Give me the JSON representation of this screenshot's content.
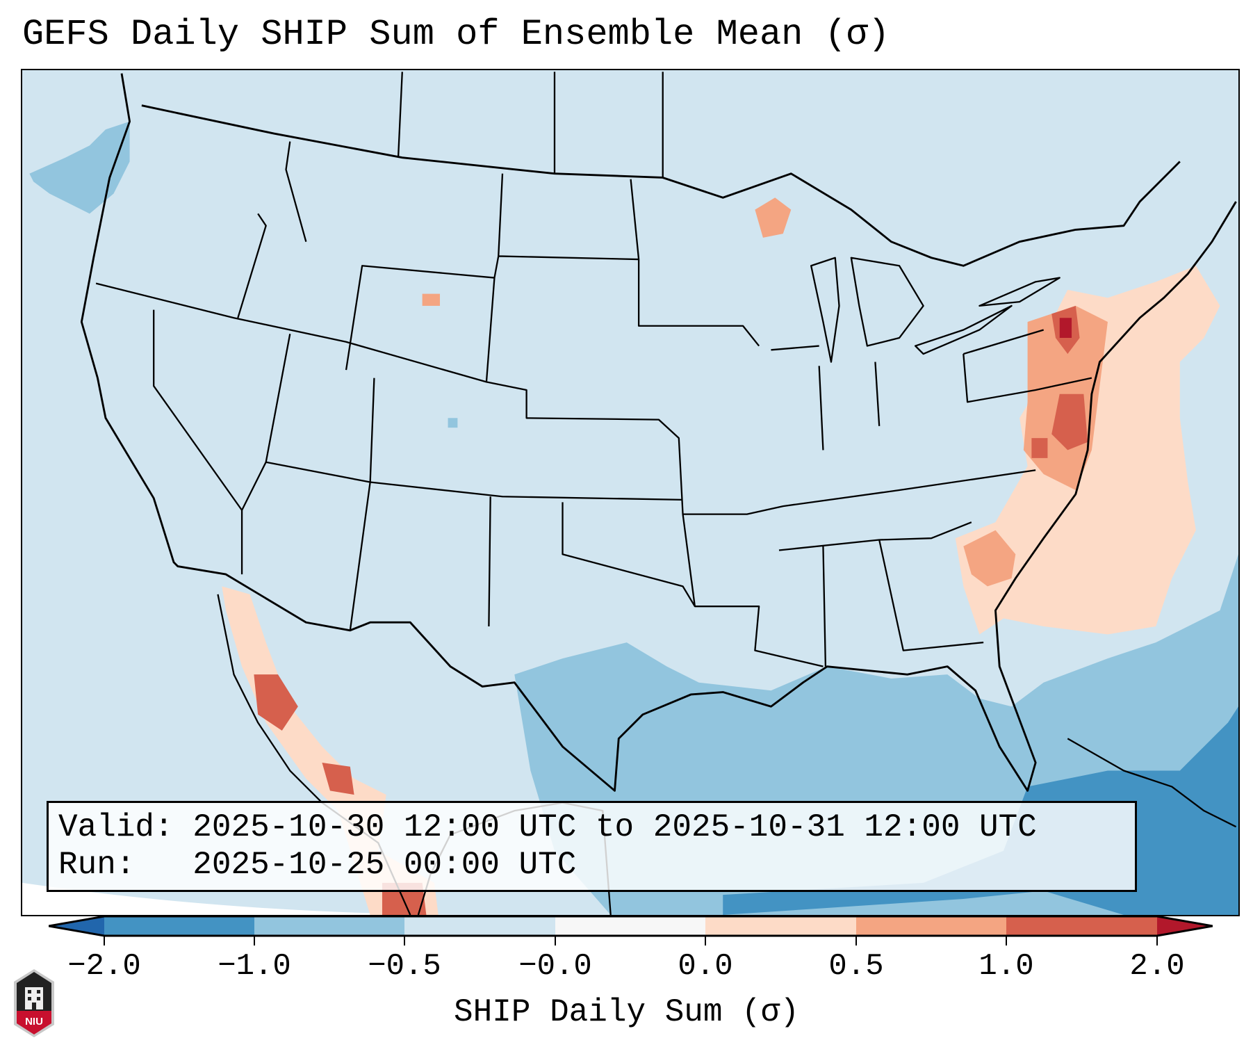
{
  "title": "GEFS Daily SHIP Sum of Ensemble Mean (σ)",
  "info": {
    "valid_label": "Valid:",
    "valid_value": "2025-10-30 12:00 UTC to 2025-10-31 12:00 UTC",
    "run_label": "Run:",
    "run_value": "2025-10-25 00:00 UTC"
  },
  "colorbar": {
    "label": "SHIP Daily Sum (σ)",
    "ticks": [
      "−2.0",
      "−1.0",
      "−0.5",
      "−0.0",
      "0.0",
      "0.5",
      "1.0",
      "2.0"
    ],
    "colors": [
      "#2166ac",
      "#4393c3",
      "#92c5de",
      "#d1e5f0",
      "#f7f7f7",
      "#fddbc7",
      "#f4a582",
      "#d6604d",
      "#b2182b"
    ]
  },
  "logo": {
    "text": "NIU"
  },
  "chart_data": {
    "type": "heatmap",
    "title": "GEFS Daily SHIP Sum of Ensemble Mean (σ)",
    "colorbar_label": "SHIP Daily Sum (σ)",
    "levels": [
      -2.0,
      -1.0,
      -0.5,
      -0.0,
      0.0,
      0.5,
      1.0,
      2.0
    ],
    "extend": "both",
    "region": "Contiguous United States"
  }
}
